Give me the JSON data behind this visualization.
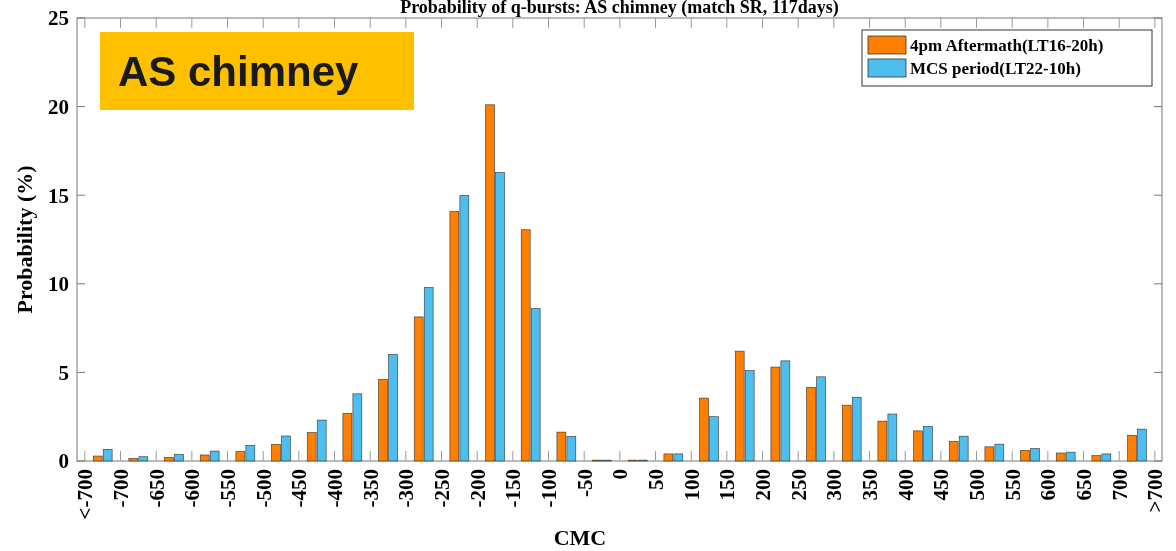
{
  "chart_data": {
    "type": "bar",
    "title": "Probability of  q-bursts: AS chimney (match SR, 117days)",
    "xlabel": "CMC",
    "ylabel": "Probability (%)",
    "x": [
      -725,
      -675,
      -625,
      -575,
      -525,
      -475,
      -425,
      -375,
      -325,
      -275,
      -225,
      -175,
      -125,
      -75,
      -25,
      25,
      75,
      125,
      175,
      225,
      275,
      325,
      375,
      425,
      475,
      525,
      575,
      625,
      675,
      725
    ],
    "series": [
      {
        "name": "4pm Aftermath(LT16-20h)",
        "color": "#ff7f00",
        "values": [
          0.28,
          0.15,
          0.2,
          0.34,
          0.53,
          0.94,
          1.6,
          2.69,
          4.6,
          8.13,
          14.08,
          20.1,
          13.05,
          1.63,
          0.05,
          0.05,
          0.4,
          3.55,
          6.2,
          5.3,
          4.15,
          3.15,
          2.25,
          1.7,
          1.1,
          0.8,
          0.6,
          0.45,
          0.3,
          1.45
        ]
      },
      {
        "name": "MCS period(LT22-10h)",
        "color": "#4dbeee",
        "values": [
          0.66,
          0.24,
          0.38,
          0.56,
          0.88,
          1.41,
          2.31,
          3.79,
          6.01,
          9.79,
          14.98,
          16.28,
          8.6,
          1.39,
          0.05,
          0.05,
          0.4,
          2.5,
          5.1,
          5.65,
          4.75,
          3.6,
          2.65,
          1.95,
          1.4,
          0.95,
          0.7,
          0.5,
          0.4,
          1.8
        ]
      }
    ],
    "xlim": [
      -761,
      760
    ],
    "xticks": [
      {
        "value": -750,
        "label": "<-700"
      },
      -700,
      -650,
      -600,
      -550,
      -500,
      -450,
      -400,
      -350,
      -300,
      -250,
      -200,
      -150,
      -100,
      -50,
      0,
      50,
      100,
      150,
      200,
      250,
      300,
      350,
      400,
      450,
      500,
      550,
      600,
      650,
      700,
      {
        "value": 750,
        "label": ">700"
      }
    ],
    "ylim": [
      0,
      25
    ],
    "yticks": [
      0,
      5,
      10,
      15,
      20,
      25
    ],
    "legend": "top right",
    "annotations": [
      "AS chimney"
    ]
  }
}
